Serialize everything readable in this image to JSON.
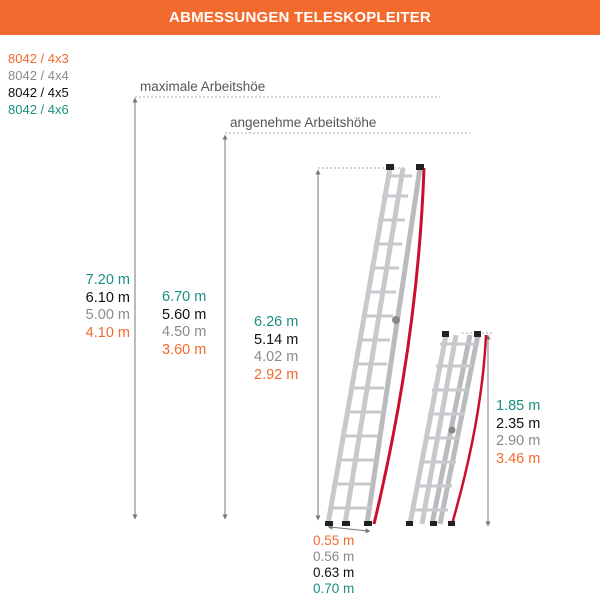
{
  "title": "ABMESSUNGEN TELESKOPLEITER",
  "colors": {
    "orange": "#f26a2e",
    "gray": "#8a8a8a",
    "black": "#111111",
    "teal": "#1a8f80",
    "ladder_red": "#c8102e",
    "aluminium": "#c7c9cc"
  },
  "legend": [
    {
      "text": "8042 / 4x3",
      "color": "#f26a2e"
    },
    {
      "text": "8042 / 4x4",
      "color": "#8a8a8a"
    },
    {
      "text": "8042 / 4x5",
      "color": "#111111"
    },
    {
      "text": "8042 / 4x6",
      "color": "#1a8f80"
    }
  ],
  "labels": {
    "max_height": "maximale Arbeitshöe",
    "comfortable_height": "angenehme Arbeitshöhe"
  },
  "max_working_height": [
    {
      "text": "7.20 m",
      "color": "#1a8f80"
    },
    {
      "text": "6.10 m",
      "color": "#111111"
    },
    {
      "text": "5.00 m",
      "color": "#8a8a8a"
    },
    {
      "text": "4.10 m",
      "color": "#f26a2e"
    }
  ],
  "comfortable_working_height": [
    {
      "text": "6.70 m",
      "color": "#1a8f80"
    },
    {
      "text": "5.60 m",
      "color": "#111111"
    },
    {
      "text": "4.50 m",
      "color": "#8a8a8a"
    },
    {
      "text": "3.60 m",
      "color": "#f26a2e"
    }
  ],
  "ladder_height": [
    {
      "text": "6.26 m",
      "color": "#1a8f80"
    },
    {
      "text": "5.14 m",
      "color": "#111111"
    },
    {
      "text": "4.02 m",
      "color": "#8a8a8a"
    },
    {
      "text": "2.92 m",
      "color": "#f26a2e"
    }
  ],
  "base_width": [
    {
      "text": "0.55 m",
      "color": "#f26a2e"
    },
    {
      "text": "0.56 m",
      "color": "#8a8a8a"
    },
    {
      "text": "0.63 m",
      "color": "#111111"
    },
    {
      "text": "0.70 m",
      "color": "#1a8f80"
    }
  ],
  "folded_height": [
    {
      "text": "1.85 m",
      "color": "#1a8f80"
    },
    {
      "text": "2.35 m",
      "color": "#111111"
    },
    {
      "text": "2.90 m",
      "color": "#8a8a8a"
    },
    {
      "text": "3.46 m",
      "color": "#f26a2e"
    }
  ]
}
